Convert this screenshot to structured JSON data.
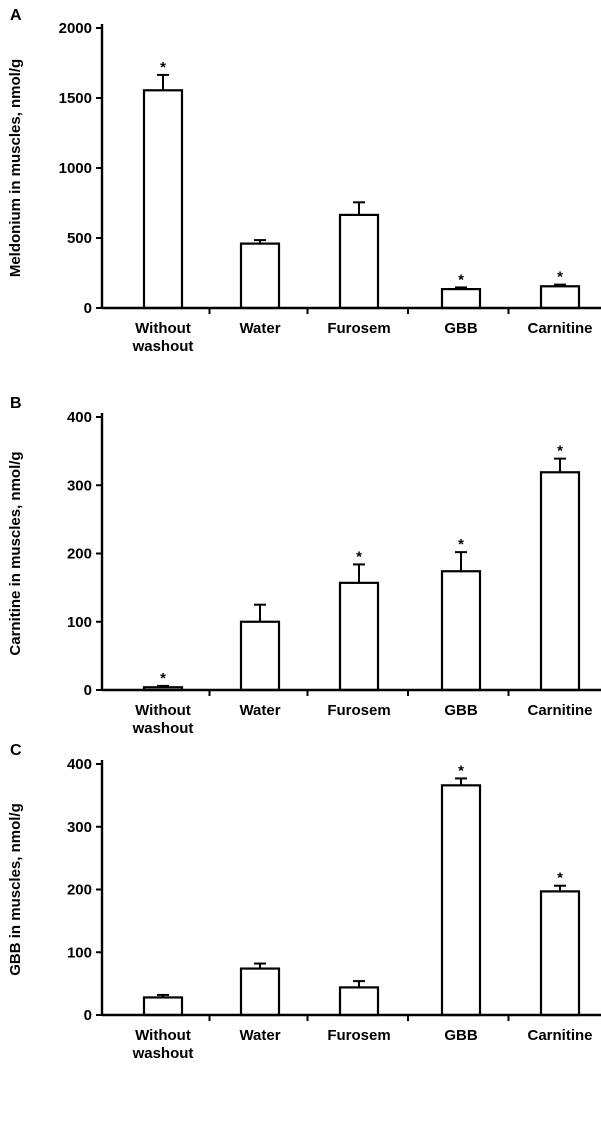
{
  "chart_data": [
    {
      "type": "bar",
      "panel_label": "A",
      "ylabel": "Meldonium in muscles, nmol/g",
      "ylim": [
        0,
        2000
      ],
      "yticks": [
        0,
        500,
        1000,
        1500,
        2000
      ],
      "categories": [
        [
          "Without",
          "washout"
        ],
        [
          "Water"
        ],
        [
          "Furosem"
        ],
        [
          "GBB"
        ],
        [
          "Carnitine"
        ]
      ],
      "values": [
        1555,
        460,
        665,
        135,
        155
      ],
      "errors": [
        110,
        25,
        90,
        12,
        12
      ],
      "significant": [
        "*",
        "",
        "",
        "*",
        "*"
      ]
    },
    {
      "type": "bar",
      "panel_label": "B",
      "ylabel": "Carnitine in muscles, nmol/g",
      "ylim": [
        0,
        400
      ],
      "yticks": [
        0,
        100,
        200,
        300,
        400
      ],
      "categories": [
        [
          "Without",
          "washout"
        ],
        [
          "Water"
        ],
        [
          "Furosem"
        ],
        [
          "GBB"
        ],
        [
          "Carnitine"
        ]
      ],
      "values": [
        4,
        100,
        157,
        174,
        319
      ],
      "errors": [
        2,
        25,
        27,
        28,
        20
      ],
      "significant": [
        "*",
        "",
        "*",
        "*",
        "*"
      ]
    },
    {
      "type": "bar",
      "panel_label": "C",
      "ylabel": "GBB in muscles, nmol/g",
      "ylim": [
        0,
        400
      ],
      "yticks": [
        0,
        100,
        200,
        300,
        400
      ],
      "categories": [
        [
          "Without",
          "washout"
        ],
        [
          "Water"
        ],
        [
          "Furosem"
        ],
        [
          "GBB"
        ],
        [
          "Carnitine"
        ]
      ],
      "values": [
        28,
        74,
        44,
        366,
        197
      ],
      "errors": [
        4,
        8,
        10,
        11,
        9
      ],
      "significant": [
        "",
        "",
        "",
        "*",
        "*"
      ]
    }
  ]
}
